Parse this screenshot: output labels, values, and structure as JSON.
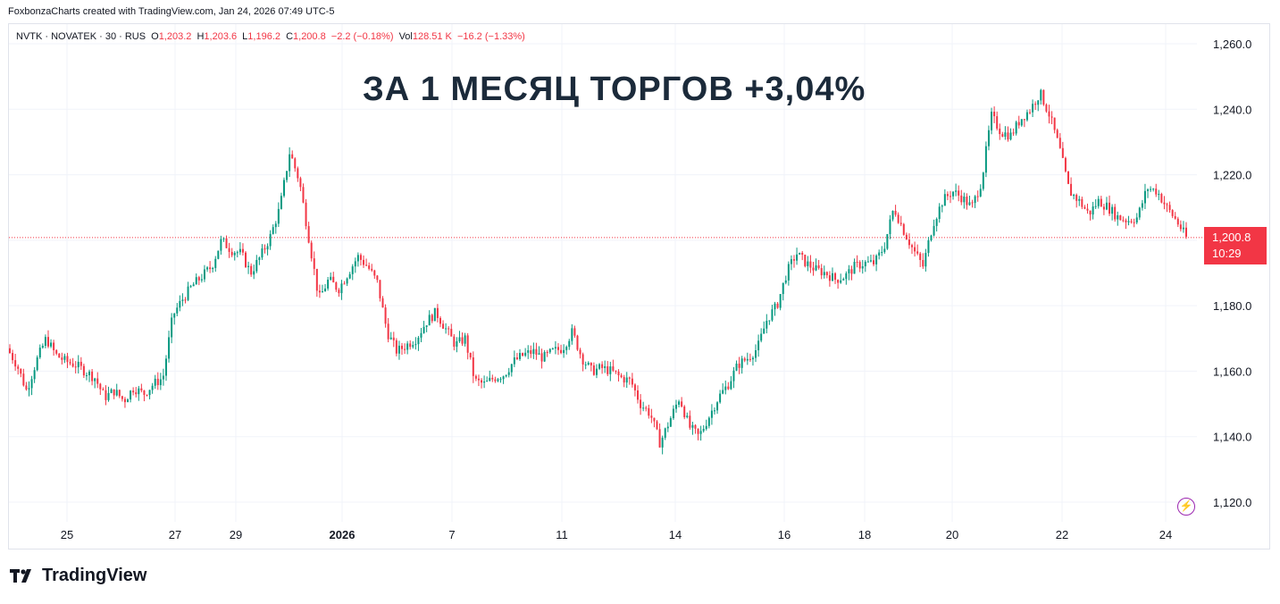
{
  "credit": "FoxbonzaCharts created with TradingView.com, Jan 24, 2026 07:49 UTC-5",
  "legend": {
    "symbol": "NVTK · NOVATEK · 30 · RUS",
    "o_label": "O",
    "o_value": "1,203.2",
    "h_label": "H",
    "h_value": "1,203.6",
    "l_label": "L",
    "l_value": "1,196.2",
    "c_label": "C",
    "c_value": "1,200.8",
    "change": "−2.2 (−0.18%)",
    "vol_label": "Vol",
    "vol_value": "128.51 K",
    "vol_change": "−16.2 (−1.33%)"
  },
  "headline": "ЗА 1 МЕСЯЦ ТОРГОВ +3,04%",
  "price_tag": {
    "price": "1,200.8",
    "countdown": "10:29"
  },
  "brand": "TradingView",
  "colors": {
    "up": "#089981",
    "down": "#f23645",
    "grid": "#f0f3fa",
    "text": "#131722"
  },
  "icons": {
    "alert": "lightning-icon",
    "logo": "tradingview-logo-icon"
  },
  "chart_data": {
    "type": "candlestick",
    "interval": "30",
    "x_ticks": [
      "25",
      "27",
      "29",
      "2026",
      "7",
      "11",
      "14",
      "16",
      "18",
      "20",
      "22",
      "24"
    ],
    "y_ticks": [
      "1,120.0",
      "1,140.0",
      "1,160.0",
      "1,180.0",
      "1,200.0",
      "1,220.0",
      "1,240.0",
      "1,260.0"
    ],
    "ylim": [
      1114,
      1266
    ],
    "last_price": 1200.8,
    "grid": true,
    "price_path": [
      {
        "x": 0,
        "y": 1167
      },
      {
        "x": 1,
        "y": 1162
      },
      {
        "x": 2,
        "y": 1154
      },
      {
        "x": 3,
        "y": 1163
      },
      {
        "x": 4,
        "y": 1170
      },
      {
        "x": 5,
        "y": 1165
      },
      {
        "x": 6,
        "y": 1163
      },
      {
        "x": 7,
        "y": 1162
      },
      {
        "x": 8,
        "y": 1160
      },
      {
        "x": 9,
        "y": 1158
      },
      {
        "x": 10,
        "y": 1152
      },
      {
        "x": 11,
        "y": 1154
      },
      {
        "x": 12,
        "y": 1151
      },
      {
        "x": 13,
        "y": 1155
      },
      {
        "x": 14,
        "y": 1153
      },
      {
        "x": 15,
        "y": 1156
      },
      {
        "x": 16,
        "y": 1158
      },
      {
        "x": 17,
        "y": 1177
      },
      {
        "x": 18,
        "y": 1182
      },
      {
        "x": 19,
        "y": 1186
      },
      {
        "x": 20,
        "y": 1189
      },
      {
        "x": 21,
        "y": 1192
      },
      {
        "x": 22,
        "y": 1200
      },
      {
        "x": 23,
        "y": 1197
      },
      {
        "x": 24,
        "y": 1196
      },
      {
        "x": 25,
        "y": 1190
      },
      {
        "x": 26,
        "y": 1195
      },
      {
        "x": 27,
        "y": 1201
      },
      {
        "x": 28,
        "y": 1210
      },
      {
        "x": 29,
        "y": 1227
      },
      {
        "x": 30,
        "y": 1218
      },
      {
        "x": 31,
        "y": 1200
      },
      {
        "x": 32,
        "y": 1182
      },
      {
        "x": 33,
        "y": 1188
      },
      {
        "x": 34,
        "y": 1185
      },
      {
        "x": 35,
        "y": 1190
      },
      {
        "x": 36,
        "y": 1195
      },
      {
        "x": 37,
        "y": 1192
      },
      {
        "x": 38,
        "y": 1187
      },
      {
        "x": 39,
        "y": 1172
      },
      {
        "x": 40,
        "y": 1166
      },
      {
        "x": 41,
        "y": 1168
      },
      {
        "x": 42,
        "y": 1170
      },
      {
        "x": 43,
        "y": 1175
      },
      {
        "x": 44,
        "y": 1178
      },
      {
        "x": 45,
        "y": 1173
      },
      {
        "x": 46,
        "y": 1168
      },
      {
        "x": 47,
        "y": 1170
      },
      {
        "x": 48,
        "y": 1157
      },
      {
        "x": 49,
        "y": 1156
      },
      {
        "x": 50,
        "y": 1158
      },
      {
        "x": 51,
        "y": 1159
      },
      {
        "x": 52,
        "y": 1163
      },
      {
        "x": 53,
        "y": 1165
      },
      {
        "x": 54,
        "y": 1166
      },
      {
        "x": 55,
        "y": 1164
      },
      {
        "x": 56,
        "y": 1166
      },
      {
        "x": 57,
        "y": 1167
      },
      {
        "x": 58,
        "y": 1172
      },
      {
        "x": 59,
        "y": 1164
      },
      {
        "x": 60,
        "y": 1160
      },
      {
        "x": 61,
        "y": 1161
      },
      {
        "x": 62,
        "y": 1160
      },
      {
        "x": 63,
        "y": 1158
      },
      {
        "x": 64,
        "y": 1157
      },
      {
        "x": 65,
        "y": 1150
      },
      {
        "x": 66,
        "y": 1147
      },
      {
        "x": 67,
        "y": 1138
      },
      {
        "x": 68,
        "y": 1145
      },
      {
        "x": 69,
        "y": 1152
      },
      {
        "x": 70,
        "y": 1143
      },
      {
        "x": 71,
        "y": 1140
      },
      {
        "x": 72,
        "y": 1146
      },
      {
        "x": 73,
        "y": 1152
      },
      {
        "x": 74,
        "y": 1156
      },
      {
        "x": 75,
        "y": 1162
      },
      {
        "x": 76,
        "y": 1164
      },
      {
        "x": 77,
        "y": 1167
      },
      {
        "x": 78,
        "y": 1176
      },
      {
        "x": 79,
        "y": 1180
      },
      {
        "x": 80,
        "y": 1190
      },
      {
        "x": 81,
        "y": 1196
      },
      {
        "x": 82,
        "y": 1193
      },
      {
        "x": 83,
        "y": 1191
      },
      {
        "x": 84,
        "y": 1190
      },
      {
        "x": 85,
        "y": 1188
      },
      {
        "x": 86,
        "y": 1189
      },
      {
        "x": 87,
        "y": 1192
      },
      {
        "x": 88,
        "y": 1193
      },
      {
        "x": 89,
        "y": 1193
      },
      {
        "x": 90,
        "y": 1198
      },
      {
        "x": 91,
        "y": 1210
      },
      {
        "x": 92,
        "y": 1203
      },
      {
        "x": 93,
        "y": 1197
      },
      {
        "x": 94,
        "y": 1192
      },
      {
        "x": 95,
        "y": 1205
      },
      {
        "x": 96,
        "y": 1212
      },
      {
        "x": 97,
        "y": 1215
      },
      {
        "x": 98,
        "y": 1213
      },
      {
        "x": 99,
        "y": 1210
      },
      {
        "x": 100,
        "y": 1218
      },
      {
        "x": 101,
        "y": 1238
      },
      {
        "x": 102,
        "y": 1233
      },
      {
        "x": 103,
        "y": 1232
      },
      {
        "x": 104,
        "y": 1237
      },
      {
        "x": 105,
        "y": 1240
      },
      {
        "x": 106,
        "y": 1245
      },
      {
        "x": 107,
        "y": 1238
      },
      {
        "x": 108,
        "y": 1228
      },
      {
        "x": 109,
        "y": 1215
      },
      {
        "x": 110,
        "y": 1212
      },
      {
        "x": 111,
        "y": 1208
      },
      {
        "x": 112,
        "y": 1212
      },
      {
        "x": 113,
        "y": 1210
      },
      {
        "x": 114,
        "y": 1207
      },
      {
        "x": 115,
        "y": 1206
      },
      {
        "x": 116,
        "y": 1207
      },
      {
        "x": 117,
        "y": 1216
      },
      {
        "x": 118,
        "y": 1215
      },
      {
        "x": 119,
        "y": 1210
      },
      {
        "x": 120,
        "y": 1206
      },
      {
        "x": 121,
        "y": 1200.8
      }
    ]
  }
}
